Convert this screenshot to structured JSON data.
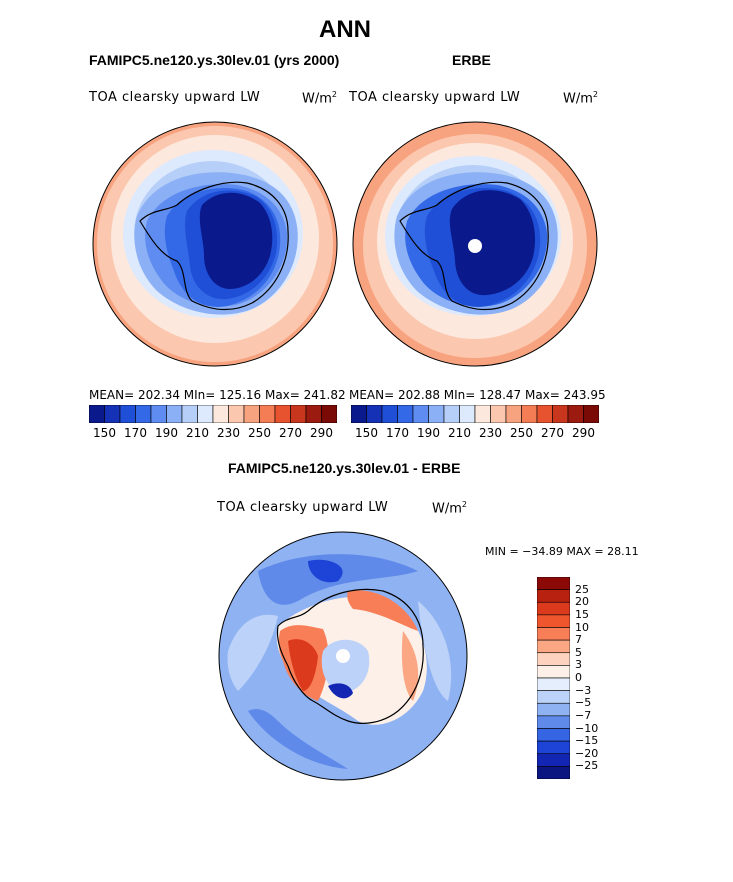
{
  "main_title": "ANN",
  "panels": [
    {
      "title": "FAMIPC5.ne120.ys.30lev.01 (yrs 2000)",
      "field_label": "TOA clearsky upward LW",
      "units": "W/m",
      "units_sup": "2",
      "stats": "MEAN= 202.34   MIn= 125.16   Max= 241.82"
    },
    {
      "title": "ERBE",
      "field_label": "TOA clearsky upward LW",
      "units": "W/m",
      "units_sup": "2",
      "stats": "MEAN= 202.88   MIn= 128.47   Max= 243.95"
    }
  ],
  "colorbar": {
    "colors": [
      "#0a1a8c",
      "#1531b5",
      "#1f4fd6",
      "#3368e6",
      "#5e8cf0",
      "#8bb0f5",
      "#b6cff9",
      "#dde9fd",
      "#fde8dd",
      "#fbc8af",
      "#f8a37f",
      "#f47d55",
      "#e8532f",
      "#c7361d",
      "#9c1b10",
      "#7a0a05"
    ],
    "labels": [
      "150",
      "170",
      "190",
      "210",
      "230",
      "250",
      "270",
      "290"
    ]
  },
  "diff_panel": {
    "title": "FAMIPC5.ne120.ys.30lev.01 - ERBE",
    "field_label": "TOA clearsky upward LW",
    "units": "W/m",
    "units_sup": "2",
    "minmax": "MIN = −34.89 MAX =  28.11",
    "colors": [
      "#8b0a08",
      "#b8200f",
      "#dc3a1c",
      "#f0562e",
      "#f87e57",
      "#fba784",
      "#fdd3bf",
      "#fdf0e8",
      "#e5eefc",
      "#bcd2f8",
      "#8eb2f2",
      "#5f8ae9",
      "#3565e3",
      "#1d44d6",
      "#1226b3",
      "#0b1680"
    ],
    "labels": [
      "25",
      "20",
      "15",
      "10",
      "7",
      "5",
      "3",
      "0",
      "−3",
      "−5",
      "−7",
      "−10",
      "−15",
      "−20",
      "−25"
    ]
  }
}
